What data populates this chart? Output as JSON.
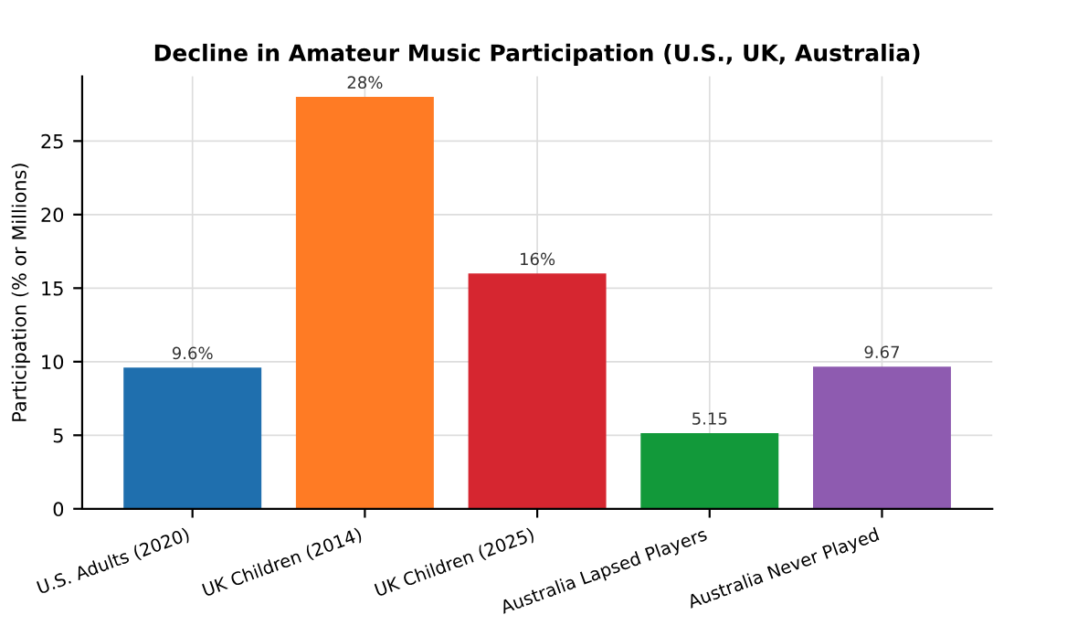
{
  "chart_data": {
    "type": "bar",
    "title": "Decline in Amateur Music Participation (U.S., UK, Australia)",
    "ylabel": "Participation (% or Millions)",
    "categories": [
      "U.S. Adults (2020)",
      "UK Children (2014)",
      "UK Children (2025)",
      "Australia Lapsed Players",
      "Australia Never Played"
    ],
    "values": [
      9.6,
      28,
      16,
      5.15,
      9.67
    ],
    "value_labels": [
      "9.6%",
      "28%",
      "16%",
      "5.15",
      "9.67"
    ],
    "colors": [
      "#1f6fae",
      "#ff7b24",
      "#d62630",
      "#12993a",
      "#8e5bb0"
    ],
    "ylim": [
      0,
      29.4
    ],
    "yticks": [
      0,
      5,
      10,
      15,
      20,
      25
    ],
    "grid": true
  }
}
